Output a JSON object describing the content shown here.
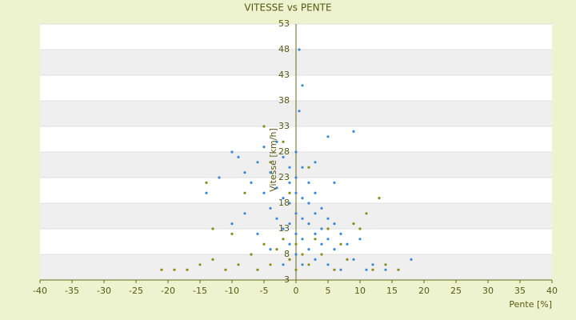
{
  "chart_data": {
    "type": "scatter",
    "title": "VITESSE vs PENTE",
    "x_label": "Pente [%]",
    "y_label": "Vitesse [km/h]",
    "xlim": [
      -40,
      40
    ],
    "xticks": [
      -40,
      -35,
      -30,
      -25,
      -20,
      -15,
      -10,
      -5,
      0,
      5,
      10,
      15,
      20,
      25,
      30,
      35,
      40
    ],
    "ylim": [
      3,
      53
    ],
    "yticks": [
      3,
      8,
      13,
      18,
      23,
      28,
      33,
      38,
      43,
      48,
      53
    ],
    "grid": true,
    "series": [
      {
        "color": "#3b8ad8",
        "x": [
          -10,
          -9,
          -8,
          -7,
          -6,
          -5,
          -5,
          -4,
          -4,
          -3,
          -3,
          -3,
          -2,
          -2,
          -2,
          -1,
          -1,
          -1,
          -1,
          -1,
          0,
          0,
          0,
          0,
          0,
          0,
          0.5,
          0.5,
          1,
          1,
          1,
          1,
          1,
          1,
          2,
          2,
          2,
          2,
          3,
          3,
          3,
          3,
          4,
          4,
          4,
          5,
          5,
          5,
          5,
          6,
          6,
          7,
          7,
          8,
          9,
          9,
          10,
          11,
          12,
          14,
          18,
          -6,
          -8,
          -12,
          -14,
          -4,
          -2,
          -7,
          3,
          6,
          -10
        ],
        "y": [
          28,
          27,
          24,
          22,
          26,
          29,
          20,
          24,
          17,
          30,
          21,
          15,
          27,
          19,
          13,
          25,
          22,
          18,
          14,
          10,
          28,
          23,
          20,
          16,
          12,
          8,
          48,
          36,
          41,
          25,
          19,
          15,
          11,
          6,
          22,
          18,
          14,
          9,
          20,
          16,
          12,
          7,
          17,
          13,
          10,
          31,
          15,
          11,
          6,
          14,
          9,
          12,
          5,
          10,
          32,
          7,
          11,
          5,
          6,
          5,
          7,
          12,
          16,
          23,
          20,
          9,
          6,
          8,
          26,
          22,
          14
        ]
      },
      {
        "color": "#8c8c12",
        "x": [
          -21,
          -19,
          -17,
          -15,
          -14,
          -13,
          -13,
          -11,
          -10,
          -9,
          -8,
          -7,
          -6,
          -5,
          -5,
          -4,
          -4,
          -3,
          -2,
          -2,
          -1,
          -1,
          0,
          0,
          1,
          2,
          3,
          4,
          5,
          6,
          7,
          8,
          9,
          10,
          11,
          12,
          13,
          14,
          16,
          2
        ],
        "y": [
          5,
          5,
          5,
          6,
          22,
          13,
          7,
          5,
          12,
          6,
          20,
          8,
          5,
          33,
          10,
          6,
          26,
          9,
          30,
          11,
          7,
          20,
          5,
          10,
          8,
          6,
          11,
          8,
          13,
          5,
          10,
          7,
          14,
          13,
          16,
          5,
          19,
          6,
          5,
          25
        ]
      }
    ]
  }
}
